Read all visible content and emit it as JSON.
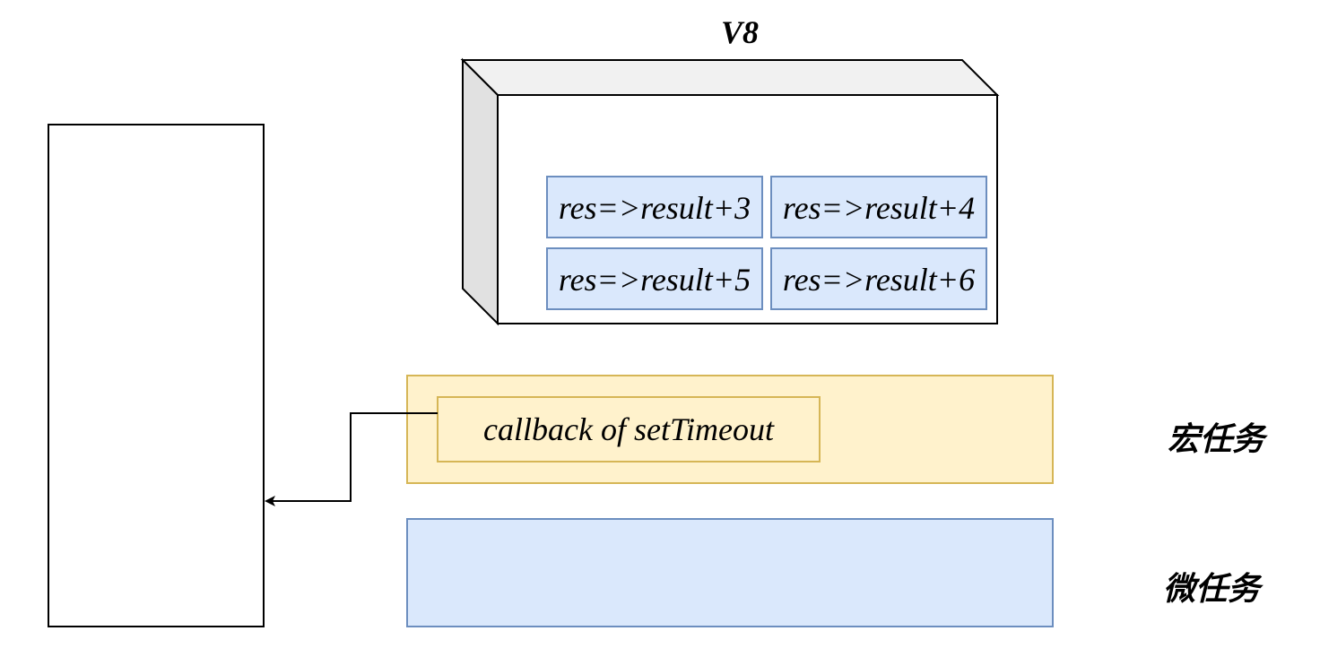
{
  "engine": {
    "title": "V8",
    "tasks": [
      "res=>result+3",
      "res=>result+4",
      "res=>result+5",
      "res=>result+6"
    ]
  },
  "macrotask_queue": {
    "label": "宏任务",
    "items": [
      "callback of setTimeout"
    ],
    "fill": "#fff2cc",
    "stroke": "#d6b656"
  },
  "microtask_queue": {
    "label": "微任务",
    "items": [],
    "fill": "#dae8fc",
    "stroke": "#6c8ebf"
  },
  "call_stack": {
    "items": []
  },
  "colors": {
    "task_fill": "#dae8fc",
    "task_stroke": "#6c8ebf",
    "box_front": "#ffffff",
    "box_top": "#f1f1f1",
    "box_side": "#e1e1e1"
  }
}
